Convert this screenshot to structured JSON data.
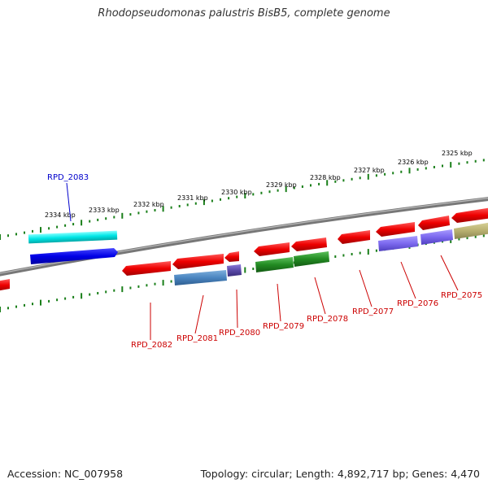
{
  "title": "Rhodopseudomonas palustris BisB5, complete genome",
  "footer": {
    "accession": "Accession: NC_007958",
    "topology": "Topology: circular; Length: 4,892,717 bp; Genes: 4,470"
  },
  "colors": {
    "backbone": "#888888",
    "ruler": "#1a7f1a",
    "red": "#ee0000",
    "cyan": "#00e6e6",
    "blue": "#0000e6",
    "steelblue": "#4a85c0",
    "purple": "#5a4aa8",
    "green": "#228b22",
    "lavender": "#7b68ee",
    "khaki": "#b8b070",
    "label_red": "#cc0000",
    "label_blue": "#0000cc"
  },
  "ruler_ticks": [
    "2325 kbp",
    "2326 kbp",
    "2327 kbp",
    "2328 kbp",
    "2329 kbp",
    "2330 kbp",
    "2331 kbp",
    "2332 kbp",
    "2333 kbp",
    "2334 kbp"
  ],
  "gene_labels": [
    {
      "id": "gene-label-rpd-2083",
      "text": "RPD_2083",
      "color": "label_blue"
    },
    {
      "id": "gene-label-rpd-2082",
      "text": "RPD_2082",
      "color": "label_red"
    },
    {
      "id": "gene-label-rpd-2081",
      "text": "RPD_2081",
      "color": "label_red"
    },
    {
      "id": "gene-label-rpd-2080",
      "text": "RPD_2080",
      "color": "label_red"
    },
    {
      "id": "gene-label-rpd-2079",
      "text": "RPD_2079",
      "color": "label_red"
    },
    {
      "id": "gene-label-rpd-2078",
      "text": "RPD_2078",
      "color": "label_red"
    },
    {
      "id": "gene-label-rpd-2077",
      "text": "RPD_2077",
      "color": "label_red"
    },
    {
      "id": "gene-label-rpd-2076",
      "text": "RPD_2076",
      "color": "label_red"
    },
    {
      "id": "gene-label-rpd-2075",
      "text": "RPD_2075",
      "color": "label_red"
    }
  ]
}
